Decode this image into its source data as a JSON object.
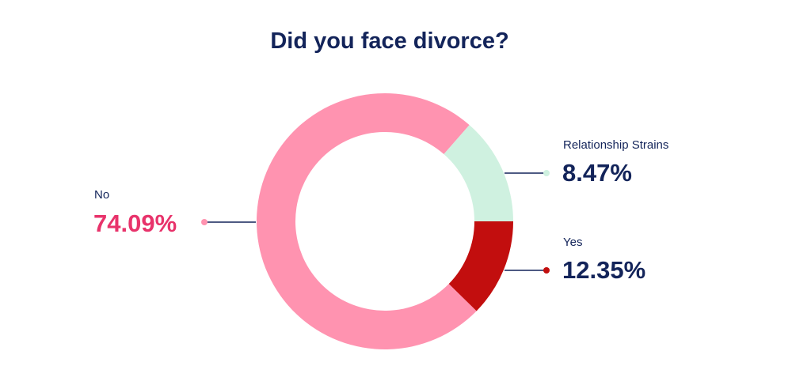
{
  "chart_data": {
    "type": "pie",
    "title": "Did you face divorce?",
    "slices": [
      {
        "label": "Yes",
        "value": 12.35,
        "display": "12.35%",
        "color": "#c20e0e"
      },
      {
        "label": "No",
        "value": 74.09,
        "display": "74.09%",
        "color": "#ff93b0"
      },
      {
        "label": "Relationship Strains",
        "value": 8.47,
        "display": "8.47%",
        "color": "#cff1e0"
      }
    ],
    "donut": true,
    "colors": {
      "title": "#13245a",
      "no_value": "#e8336b",
      "leader": "#13245a"
    }
  }
}
